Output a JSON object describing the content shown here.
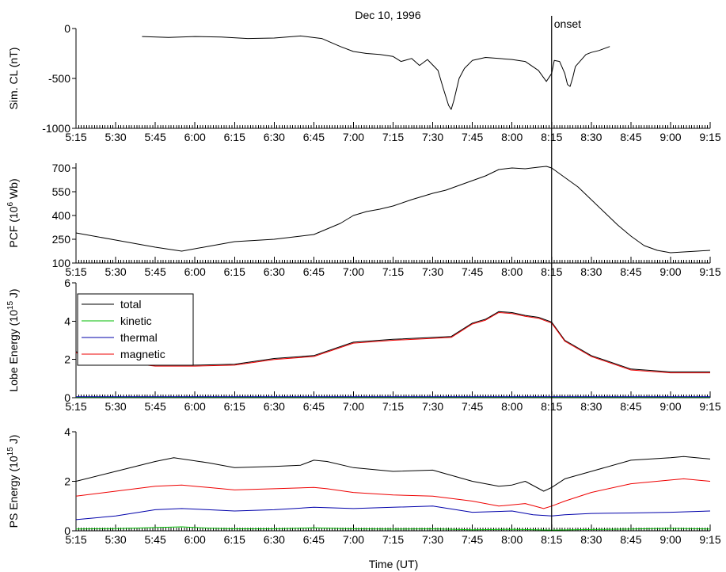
{
  "chart_data": {
    "type": "line",
    "title": "Dec 10, 1996",
    "xlabel": "Time (UT)",
    "x_ticks": [
      "5:15",
      "5:30",
      "5:45",
      "6:00",
      "6:15",
      "6:30",
      "6:45",
      "7:00",
      "7:15",
      "7:30",
      "7:45",
      "8:00",
      "8:15",
      "8:30",
      "8:45",
      "9:00",
      "9:15"
    ],
    "onset": {
      "x": "8:15",
      "label": "onset"
    },
    "panels": [
      {
        "ylabel": "Sim. CL (nT)",
        "ylim": [
          -1000,
          0
        ],
        "y_ticks": [
          {
            "v": 0,
            "label": "0"
          },
          {
            "v": -500,
            "label": "-500"
          },
          {
            "v": -1000,
            "label": "-1000"
          }
        ],
        "series": [
          {
            "color": "#000000",
            "x": [
              "5:40",
              "5:50",
              "6:00",
              "6:10",
              "6:20",
              "6:30",
              "6:40",
              "6:48",
              "6:55",
              "7:00",
              "7:05",
              "7:10",
              "7:15",
              "7:18",
              "7:22",
              "7:25",
              "7:28",
              "7:32",
              "7:34",
              "7:36",
              "7:37",
              "7:38",
              "7:40",
              "7:42",
              "7:45",
              "7:50",
              "7:55",
              "8:00",
              "8:05",
              "8:10",
              "8:13",
              "8:15",
              "8:16",
              "8:18",
              "8:20",
              "8:21",
              "8:22",
              "8:23",
              "8:24",
              "8:26",
              "8:28",
              "8:30",
              "8:33",
              "8:37"
            ],
            "y": [
              -80,
              -90,
              -80,
              -85,
              -100,
              -95,
              -75,
              -100,
              -180,
              -230,
              -250,
              -260,
              -280,
              -330,
              -300,
              -370,
              -310,
              -420,
              -600,
              -770,
              -810,
              -720,
              -500,
              -400,
              -320,
              -290,
              -300,
              -310,
              -330,
              -420,
              -530,
              -450,
              -320,
              -330,
              -450,
              -560,
              -580,
              -490,
              -380,
              -320,
              -260,
              -240,
              -220,
              -180
            ]
          }
        ]
      },
      {
        "ylabel": "PCF (10^6 Wb)",
        "ylim": [
          100,
          730
        ],
        "y_ticks": [
          {
            "v": 100,
            "label": "100"
          },
          {
            "v": 250,
            "label": "250"
          },
          {
            "v": 400,
            "label": "400"
          },
          {
            "v": 550,
            "label": "550"
          },
          {
            "v": 700,
            "label": "700"
          }
        ],
        "series": [
          {
            "color": "#000000",
            "x": [
              "5:15",
              "5:30",
              "5:45",
              "5:55",
              "6:05",
              "6:15",
              "6:30",
              "6:45",
              "6:55",
              "7:00",
              "7:05",
              "7:10",
              "7:15",
              "7:22",
              "7:30",
              "7:35",
              "7:40",
              "7:45",
              "7:50",
              "7:55",
              "8:00",
              "8:05",
              "8:10",
              "8:13",
              "8:15",
              "8:20",
              "8:25",
              "8:30",
              "8:35",
              "8:40",
              "8:45",
              "8:50",
              "8:55",
              "9:00",
              "9:05",
              "9:10",
              "9:15"
            ],
            "y": [
              290,
              245,
              200,
              175,
              205,
              235,
              250,
              280,
              350,
              400,
              425,
              440,
              460,
              500,
              540,
              560,
              590,
              620,
              650,
              690,
              700,
              695,
              705,
              710,
              700,
              640,
              580,
              500,
              420,
              340,
              270,
              210,
              180,
              165,
              170,
              175,
              180
            ]
          }
        ]
      },
      {
        "ylabel": "Lobe Energy (10^15 J)",
        "ylim": [
          0,
          6
        ],
        "y_ticks": [
          {
            "v": 0,
            "label": "0"
          },
          {
            "v": 2,
            "label": "2"
          },
          {
            "v": 4,
            "label": "4"
          },
          {
            "v": 6,
            "label": "6"
          }
        ],
        "legend": {
          "position": "top-left"
        },
        "series": [
          {
            "name": "total",
            "color": "#000000",
            "x": [
              "5:15",
              "5:30",
              "5:45",
              "6:00",
              "6:15",
              "6:30",
              "6:45",
              "7:00",
              "7:15",
              "7:30",
              "7:37",
              "7:45",
              "7:50",
              "7:55",
              "8:00",
              "8:05",
              "8:10",
              "8:15",
              "8:20",
              "8:30",
              "8:45",
              "9:00",
              "9:15"
            ],
            "y": [
              2.4,
              1.95,
              1.7,
              1.7,
              1.75,
              2.05,
              2.2,
              2.9,
              3.05,
              3.15,
              3.2,
              3.9,
              4.1,
              4.5,
              4.45,
              4.3,
              4.2,
              3.95,
              3.0,
              2.2,
              1.5,
              1.35,
              1.35
            ]
          },
          {
            "name": "kinetic",
            "color": "#00bb00",
            "x": [
              "5:15",
              "9:15"
            ],
            "y": [
              0.03,
              0.03
            ]
          },
          {
            "name": "thermal",
            "color": "#0000aa",
            "x": [
              "5:15",
              "9:15"
            ],
            "y": [
              0.05,
              0.05
            ]
          },
          {
            "name": "magnetic",
            "color": "#ee0000",
            "x": [
              "5:15",
              "5:30",
              "5:45",
              "6:00",
              "6:15",
              "6:30",
              "6:45",
              "7:00",
              "7:15",
              "7:30",
              "7:37",
              "7:45",
              "7:50",
              "7:55",
              "8:00",
              "8:05",
              "8:10",
              "8:15",
              "8:20",
              "8:30",
              "8:45",
              "9:00",
              "9:15"
            ],
            "y": [
              2.35,
              1.9,
              1.65,
              1.65,
              1.7,
              2.0,
              2.15,
              2.85,
              3.0,
              3.1,
              3.15,
              3.85,
              4.05,
              4.45,
              4.4,
              4.25,
              4.15,
              3.9,
              2.95,
              2.15,
              1.45,
              1.3,
              1.3
            ]
          }
        ]
      },
      {
        "ylabel": "PS Energy (10^15 J)",
        "ylim": [
          0,
          4
        ],
        "y_ticks": [
          {
            "v": 0,
            "label": "0"
          },
          {
            "v": 2,
            "label": "2"
          },
          {
            "v": 4,
            "label": "4"
          }
        ],
        "series": [
          {
            "name": "total",
            "color": "#000000",
            "x": [
              "5:15",
              "5:30",
              "5:45",
              "5:52",
              "6:05",
              "6:15",
              "6:30",
              "6:40",
              "6:45",
              "6:50",
              "7:00",
              "7:15",
              "7:30",
              "7:45",
              "7:55",
              "8:00",
              "8:05",
              "8:12",
              "8:15",
              "8:20",
              "8:30",
              "8:45",
              "9:00",
              "9:05",
              "9:15"
            ],
            "y": [
              2.0,
              2.4,
              2.8,
              2.95,
              2.75,
              2.55,
              2.6,
              2.65,
              2.85,
              2.8,
              2.55,
              2.4,
              2.45,
              2.0,
              1.8,
              1.85,
              2.0,
              1.6,
              1.75,
              2.1,
              2.4,
              2.85,
              2.95,
              3.0,
              2.9
            ]
          },
          {
            "name": "kinetic",
            "color": "#00bb00",
            "x": [
              "5:15",
              "5:30",
              "5:45",
              "5:55",
              "6:05",
              "6:15",
              "6:30",
              "6:45",
              "7:00",
              "7:15",
              "7:30",
              "7:45",
              "8:00",
              "8:15",
              "8:30",
              "8:45",
              "9:00",
              "9:15"
            ],
            "y": [
              0.07,
              0.09,
              0.13,
              0.16,
              0.11,
              0.08,
              0.08,
              0.12,
              0.08,
              0.07,
              0.08,
              0.04,
              0.06,
              0.03,
              0.05,
              0.07,
              0.1,
              0.07
            ]
          },
          {
            "name": "thermal",
            "color": "#0000aa",
            "x": [
              "5:15",
              "5:30",
              "5:45",
              "5:55",
              "6:05",
              "6:15",
              "6:30",
              "6:45",
              "7:00",
              "7:15",
              "7:30",
              "7:45",
              "8:00",
              "8:08",
              "8:15",
              "8:20",
              "8:30",
              "8:45",
              "9:00",
              "9:15"
            ],
            "y": [
              0.45,
              0.6,
              0.85,
              0.9,
              0.85,
              0.8,
              0.85,
              0.95,
              0.9,
              0.95,
              1.0,
              0.75,
              0.8,
              0.65,
              0.6,
              0.65,
              0.7,
              0.72,
              0.75,
              0.8
            ]
          },
          {
            "name": "magnetic",
            "color": "#ee0000",
            "x": [
              "5:15",
              "5:30",
              "5:45",
              "5:55",
              "6:05",
              "6:15",
              "6:30",
              "6:45",
              "6:50",
              "7:00",
              "7:15",
              "7:30",
              "7:45",
              "7:55",
              "8:05",
              "8:12",
              "8:15",
              "8:20",
              "8:30",
              "8:45",
              "9:00",
              "9:05",
              "9:15"
            ],
            "y": [
              1.4,
              1.6,
              1.8,
              1.85,
              1.75,
              1.65,
              1.7,
              1.75,
              1.7,
              1.55,
              1.45,
              1.4,
              1.2,
              1.0,
              1.1,
              0.9,
              1.0,
              1.2,
              1.55,
              1.9,
              2.05,
              2.1,
              2.0
            ]
          }
        ]
      }
    ]
  }
}
